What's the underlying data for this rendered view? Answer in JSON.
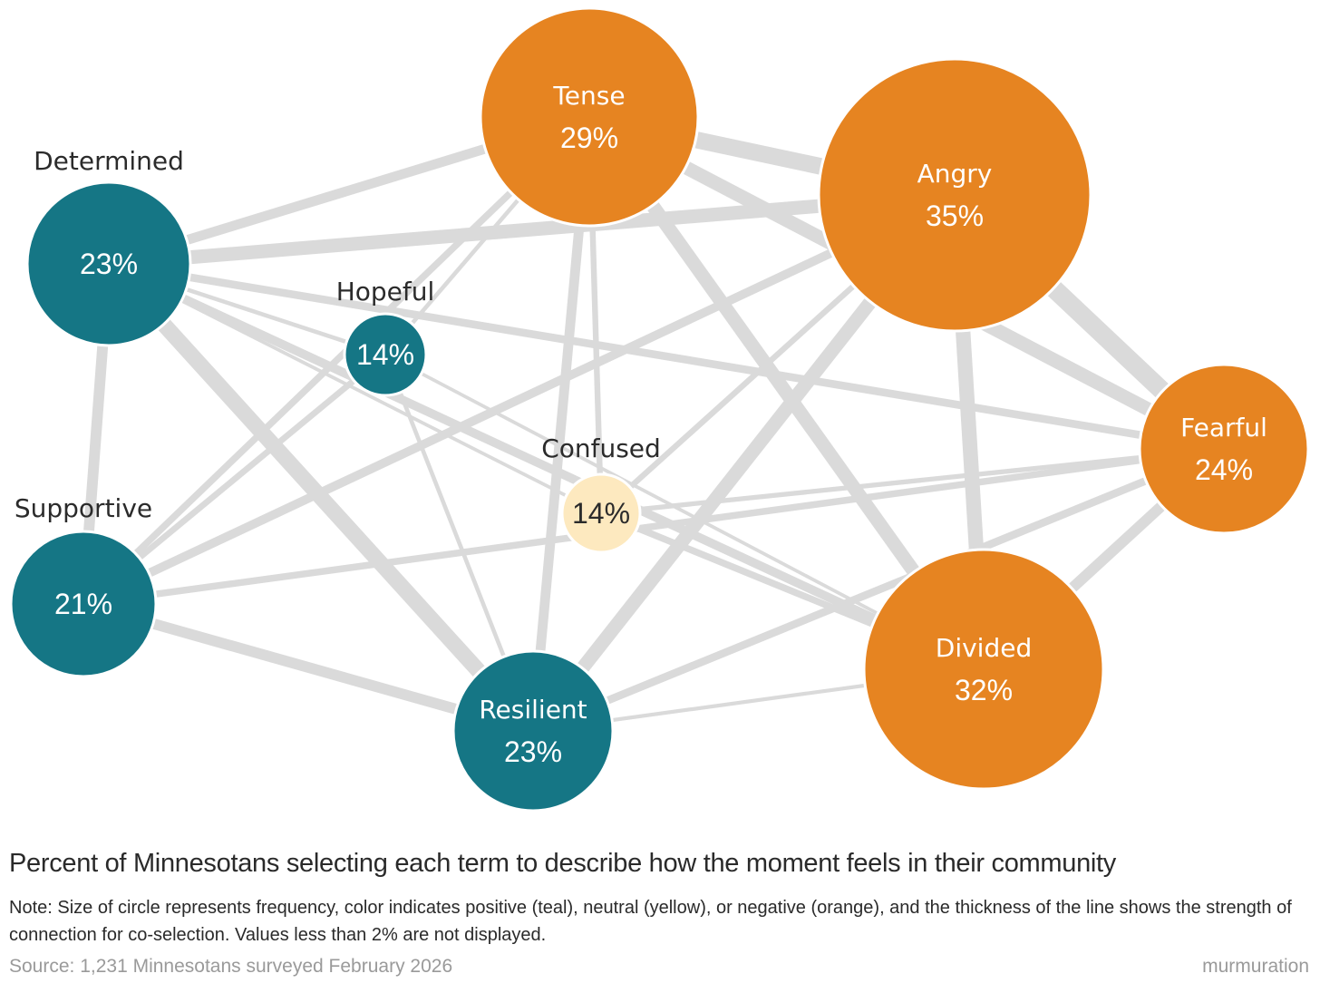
{
  "colors": {
    "positive": "#157685",
    "neutral": "#fde9bf",
    "negative": "#e68421",
    "edge": "#dadada"
  },
  "chart_data": {
    "type": "network",
    "nodes": [
      {
        "id": "determined",
        "name": "Determined",
        "value": "23%",
        "sentiment": "positive",
        "label_position": "outside"
      },
      {
        "id": "hopeful",
        "name": "Hopeful",
        "value": "14%",
        "sentiment": "positive",
        "label_position": "outside"
      },
      {
        "id": "supportive",
        "name": "Supportive",
        "value": "21%",
        "sentiment": "positive",
        "label_position": "outside"
      },
      {
        "id": "resilient",
        "name": "Resilient",
        "value": "23%",
        "sentiment": "positive",
        "label_position": "inside"
      },
      {
        "id": "confused",
        "name": "Confused",
        "value": "14%",
        "sentiment": "neutral",
        "label_position": "outside"
      },
      {
        "id": "tense",
        "name": "Tense",
        "value": "29%",
        "sentiment": "negative",
        "label_position": "inside"
      },
      {
        "id": "angry",
        "name": "Angry",
        "value": "35%",
        "sentiment": "negative",
        "label_position": "inside"
      },
      {
        "id": "fearful",
        "name": "Fearful",
        "value": "24%",
        "sentiment": "negative",
        "label_position": "inside"
      },
      {
        "id": "divided",
        "name": "Divided",
        "value": "32%",
        "sentiment": "negative",
        "label_position": "inside"
      }
    ],
    "edges": [
      {
        "source": "tense",
        "target": "angry",
        "strength": 0.75
      },
      {
        "source": "angry",
        "target": "fearful",
        "strength": 0.85
      },
      {
        "source": "tense",
        "target": "fearful",
        "strength": 0.6
      },
      {
        "source": "angry",
        "target": "divided",
        "strength": 0.65
      },
      {
        "source": "tense",
        "target": "divided",
        "strength": 0.6
      },
      {
        "source": "determined",
        "target": "resilient",
        "strength": 0.7
      },
      {
        "source": "determined",
        "target": "angry",
        "strength": 0.6
      },
      {
        "source": "angry",
        "target": "resilient",
        "strength": 0.6
      },
      {
        "source": "determined",
        "target": "tense",
        "strength": 0.4
      },
      {
        "source": "determined",
        "target": "supportive",
        "strength": 0.45
      },
      {
        "source": "supportive",
        "target": "resilient",
        "strength": 0.45
      },
      {
        "source": "fearful",
        "target": "divided",
        "strength": 0.45
      },
      {
        "source": "tense",
        "target": "resilient",
        "strength": 0.4
      },
      {
        "source": "supportive",
        "target": "angry",
        "strength": 0.35
      },
      {
        "source": "determined",
        "target": "fearful",
        "strength": 0.3
      },
      {
        "source": "determined",
        "target": "divided",
        "strength": 0.35
      },
      {
        "source": "resilient",
        "target": "fearful",
        "strength": 0.3
      },
      {
        "source": "supportive",
        "target": "fearful",
        "strength": 0.25
      },
      {
        "source": "supportive",
        "target": "tense",
        "strength": 0.25
      },
      {
        "source": "confused",
        "target": "divided",
        "strength": 0.25
      },
      {
        "source": "tense",
        "target": "confused",
        "strength": 0.2
      },
      {
        "source": "supportive",
        "target": "hopeful",
        "strength": 0.22
      },
      {
        "source": "confused",
        "target": "angry",
        "strength": 0.2
      },
      {
        "source": "confused",
        "target": "fearful",
        "strength": 0.15
      },
      {
        "source": "determined",
        "target": "hopeful",
        "strength": 0.12
      },
      {
        "source": "hopeful",
        "target": "tense",
        "strength": 0.12
      },
      {
        "source": "hopeful",
        "target": "resilient",
        "strength": 0.12
      },
      {
        "source": "hopeful",
        "target": "divided",
        "strength": 0.08
      },
      {
        "source": "determined",
        "target": "confused",
        "strength": 0.08
      },
      {
        "source": "resilient",
        "target": "divided",
        "strength": 0.1
      }
    ]
  },
  "caption": "Percent of Minnesotans selecting each term to describe how the moment feels in their community",
  "note": "Note: Size of circle represents frequency, color indicates positive (teal), neutral (yellow), or negative (orange), and the thickness of the line shows the strength of connection for co-selection. Values less than 2% are not displayed.",
  "source": "Source: 1,231 Minnesotans surveyed February 2026",
  "brand": "murmuration"
}
